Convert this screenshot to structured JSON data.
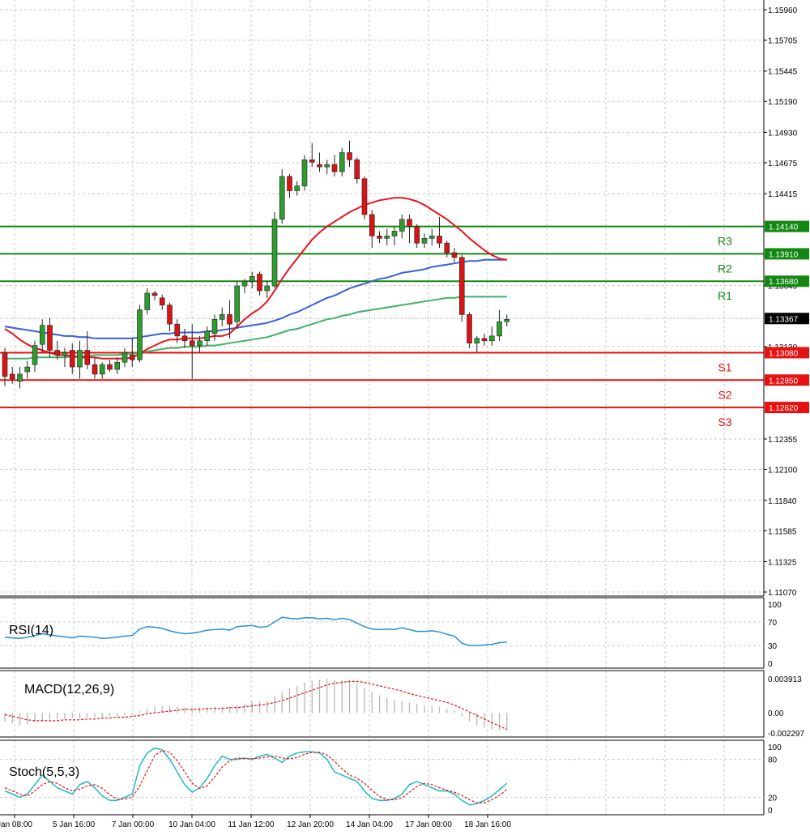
{
  "chart_data": {
    "type": "candlestick",
    "colors": {
      "bull": "#2e9d2e",
      "bear": "#d81414",
      "ma_fast": "#e8141e",
      "ma_mid": "#3a5fd9",
      "ma_slow": "#44b066",
      "resistance": "#118811",
      "support": "#e81010",
      "rsi": "#2a8fd8",
      "stoch_main": "#1fbcc2",
      "stoch_signal": "#e81010",
      "macd_hist": "#b0b0b0",
      "macd_signal": "#e81010",
      "grid": "#c8c8c8",
      "current_tag": "#000000"
    },
    "price_axis": {
      "ticks": [
        "1.15960",
        "1.15705",
        "1.15445",
        "1.15190",
        "1.14930",
        "1.14675",
        "1.14415",
        "1.13645",
        "1.13130",
        "1.12355",
        "1.12100",
        "1.11840",
        "1.11585",
        "1.11325",
        "1.11070"
      ],
      "ylim": [
        1.1107,
        1.1596
      ]
    },
    "current_price": "1.13367",
    "levels": [
      {
        "name": "R3",
        "price": "1.14140",
        "kind": "resistance"
      },
      {
        "name": "R2",
        "price": "1.13910",
        "kind": "resistance"
      },
      {
        "name": "R1",
        "price": "1.13680",
        "kind": "resistance"
      },
      {
        "name": "S1",
        "price": "1.13080",
        "kind": "support"
      },
      {
        "name": "S2",
        "price": "1.12850",
        "kind": "support"
      },
      {
        "name": "S3",
        "price": "1.12620",
        "kind": "support"
      }
    ],
    "x_labels": [
      "Jan 08:00",
      "5 Jan 16:00",
      "7 Jan 00:00",
      "10 Jan 04:00",
      "11 Jan 12:00",
      "12 Jan 20:00",
      "14 Jan 04:00",
      "17 Jan 08:00",
      "18 Jan 16:00"
    ],
    "candles": [
      [
        1.1308,
        1.1312,
        1.128,
        1.1288
      ],
      [
        1.129,
        1.1296,
        1.1282,
        1.1286
      ],
      [
        1.1284,
        1.1296,
        1.1278,
        1.129
      ],
      [
        1.1292,
        1.1301,
        1.1286,
        1.1296
      ],
      [
        1.1298,
        1.1318,
        1.1292,
        1.1314
      ],
      [
        1.1315,
        1.1336,
        1.1308,
        1.1331
      ],
      [
        1.1331,
        1.1337,
        1.1304,
        1.131
      ],
      [
        1.131,
        1.1318,
        1.1302,
        1.1306
      ],
      [
        1.1306,
        1.1312,
        1.1296,
        1.1308
      ],
      [
        1.131,
        1.1316,
        1.129,
        1.1296
      ],
      [
        1.1296,
        1.1318,
        1.1286,
        1.131
      ],
      [
        1.131,
        1.1326,
        1.1294,
        1.1298
      ],
      [
        1.1298,
        1.1304,
        1.1286,
        1.129
      ],
      [
        1.129,
        1.13,
        1.1286,
        1.1298
      ],
      [
        1.1298,
        1.1302,
        1.1292,
        1.1294
      ],
      [
        1.1294,
        1.1304,
        1.129,
        1.13
      ],
      [
        1.13,
        1.1312,
        1.1296,
        1.1308
      ],
      [
        1.1306,
        1.132,
        1.1296,
        1.1302
      ],
      [
        1.1302,
        1.1348,
        1.13,
        1.1344
      ],
      [
        1.1344,
        1.1362,
        1.134,
        1.1358
      ],
      [
        1.1358,
        1.136,
        1.1352,
        1.1356
      ],
      [
        1.1354,
        1.1357,
        1.1344,
        1.1348
      ],
      [
        1.1348,
        1.135,
        1.1326,
        1.1332
      ],
      [
        1.1332,
        1.1336,
        1.1316,
        1.1322
      ],
      [
        1.1322,
        1.1328,
        1.1312,
        1.1318
      ],
      [
        1.1318,
        1.1332,
        1.1286,
        1.1314
      ],
      [
        1.1314,
        1.1322,
        1.1308,
        1.1318
      ],
      [
        1.1318,
        1.133,
        1.1314,
        1.1326
      ],
      [
        1.1324,
        1.134,
        1.1318,
        1.1336
      ],
      [
        1.1336,
        1.1346,
        1.133,
        1.134
      ],
      [
        1.134,
        1.1352,
        1.132,
        1.1332
      ],
      [
        1.1334,
        1.1368,
        1.1328,
        1.1364
      ],
      [
        1.1364,
        1.137,
        1.1358,
        1.1368
      ],
      [
        1.1368,
        1.1376,
        1.1362,
        1.1372
      ],
      [
        1.1374,
        1.1376,
        1.1356,
        1.136
      ],
      [
        1.136,
        1.1368,
        1.1354,
        1.1364
      ],
      [
        1.1364,
        1.1426,
        1.1362,
        1.142
      ],
      [
        1.142,
        1.1462,
        1.1416,
        1.1456
      ],
      [
        1.1456,
        1.1458,
        1.1438,
        1.1444
      ],
      [
        1.1444,
        1.1452,
        1.144,
        1.1448
      ],
      [
        1.1448,
        1.1474,
        1.1444,
        1.147
      ],
      [
        1.147,
        1.1484,
        1.1464,
        1.1468
      ],
      [
        1.1466,
        1.1476,
        1.146,
        1.1464
      ],
      [
        1.1464,
        1.147,
        1.1458,
        1.1466
      ],
      [
        1.1466,
        1.1474,
        1.1456,
        1.146
      ],
      [
        1.146,
        1.148,
        1.1456,
        1.1476
      ],
      [
        1.1476,
        1.1486,
        1.1464,
        1.147
      ],
      [
        1.147,
        1.1472,
        1.145,
        1.1454
      ],
      [
        1.1454,
        1.1456,
        1.142,
        1.1424
      ],
      [
        1.1424,
        1.1428,
        1.1396,
        1.1406
      ],
      [
        1.1406,
        1.141,
        1.14,
        1.1404
      ],
      [
        1.1404,
        1.1412,
        1.1398,
        1.1406
      ],
      [
        1.1406,
        1.1414,
        1.1398,
        1.141
      ],
      [
        1.141,
        1.1424,
        1.1404,
        1.142
      ],
      [
        1.142,
        1.1424,
        1.14,
        1.1414
      ],
      [
        1.1414,
        1.1416,
        1.1396,
        1.14
      ],
      [
        1.14,
        1.1408,
        1.1396,
        1.1404
      ],
      [
        1.1404,
        1.1412,
        1.1398,
        1.1406
      ],
      [
        1.1406,
        1.1422,
        1.1396,
        1.14
      ],
      [
        1.14,
        1.1402,
        1.1388,
        1.1392
      ],
      [
        1.1392,
        1.1396,
        1.1384,
        1.1388
      ],
      [
        1.1388,
        1.139,
        1.1334,
        1.134
      ],
      [
        1.134,
        1.1342,
        1.1312,
        1.1316
      ],
      [
        1.1316,
        1.1322,
        1.1308,
        1.132
      ],
      [
        1.132,
        1.1324,
        1.1314,
        1.1318
      ],
      [
        1.1318,
        1.133,
        1.1314,
        1.1322
      ],
      [
        1.1322,
        1.1344,
        1.1318,
        1.1334
      ],
      [
        1.1334,
        1.134,
        1.133,
        1.1336
      ]
    ],
    "ma_fast": [
      1.1328,
      1.1324,
      1.1319,
      1.1315,
      1.1312,
      1.131,
      1.1308,
      1.1306,
      1.1306,
      1.1305,
      1.1304,
      1.1304,
      1.1304,
      1.1303,
      1.1303,
      1.1303,
      1.1303,
      1.1304,
      1.1307,
      1.1311,
      1.1314,
      1.1317,
      1.1319,
      1.1319,
      1.132,
      1.132,
      1.132,
      1.1321,
      1.1322,
      1.1322,
      1.1324,
      1.133,
      1.1336,
      1.1341,
      1.1345,
      1.1351,
      1.136,
      1.137,
      1.1379,
      1.1387,
      1.1395,
      1.1403,
      1.1409,
      1.1414,
      1.1418,
      1.1422,
      1.1426,
      1.1429,
      1.1432,
      1.1434,
      1.1436,
      1.1437,
      1.1438,
      1.1438,
      1.1437,
      1.1435,
      1.1432,
      1.1428,
      1.1424,
      1.142,
      1.1415,
      1.141,
      1.1404,
      1.1399,
      1.1394,
      1.139,
      1.1387,
      1.1386
    ],
    "ma_mid": [
      1.133,
      1.1329,
      1.1328,
      1.1327,
      1.1326,
      1.1325,
      1.1324,
      1.1323,
      1.1322,
      1.1322,
      1.1321,
      1.1321,
      1.132,
      1.132,
      1.132,
      1.132,
      1.132,
      1.132,
      1.1321,
      1.1322,
      1.1323,
      1.1324,
      1.1324,
      1.1325,
      1.1325,
      1.1325,
      1.1325,
      1.1326,
      1.1326,
      1.1327,
      1.1328,
      1.1329,
      1.133,
      1.1331,
      1.1332,
      1.1333,
      1.1335,
      1.1337,
      1.134,
      1.1342,
      1.1345,
      1.1348,
      1.1351,
      1.1354,
      1.1356,
      1.1359,
      1.1362,
      1.1364,
      1.1366,
      1.1368,
      1.137,
      1.1371,
      1.1373,
      1.1375,
      1.1376,
      1.1377,
      1.1378,
      1.138,
      1.1381,
      1.1382,
      1.1383,
      1.1384,
      1.1385,
      1.1385,
      1.1386,
      1.1386,
      1.1386,
      1.1386
    ],
    "ma_slow": [
      1.1303,
      1.1303,
      1.1303,
      1.1303,
      1.1304,
      1.1304,
      1.1304,
      1.1304,
      1.1304,
      1.1305,
      1.1305,
      1.1305,
      1.1306,
      1.1306,
      1.1306,
      1.1306,
      1.1307,
      1.1307,
      1.1308,
      1.1309,
      1.131,
      1.1311,
      1.1312,
      1.1312,
      1.1313,
      1.1313,
      1.1313,
      1.1314,
      1.1314,
      1.1315,
      1.1316,
      1.1317,
      1.1318,
      1.1319,
      1.132,
      1.1321,
      1.1323,
      1.1325,
      1.1327,
      1.1328,
      1.133,
      1.1332,
      1.1334,
      1.1336,
      1.1337,
      1.1339,
      1.134,
      1.1342,
      1.1343,
      1.1344,
      1.1345,
      1.1346,
      1.1347,
      1.1348,
      1.1349,
      1.135,
      1.1351,
      1.1352,
      1.1353,
      1.1354,
      1.1354,
      1.1355,
      1.1355,
      1.1355,
      1.1355,
      1.1355,
      1.1355,
      1.1355
    ],
    "rsi": {
      "title": "RSI(14)",
      "ticks": [
        "100",
        "70",
        "30",
        "0"
      ],
      "values": [
        44,
        43,
        42,
        44,
        47,
        50,
        48,
        46,
        45,
        43,
        46,
        45,
        44,
        42,
        43,
        44,
        46,
        47,
        58,
        62,
        61,
        59,
        55,
        52,
        50,
        51,
        53,
        56,
        57,
        58,
        56,
        62,
        63,
        64,
        61,
        62,
        70,
        78,
        76,
        75,
        77,
        77,
        75,
        76,
        74,
        76,
        74,
        68,
        62,
        58,
        57,
        58,
        57,
        60,
        57,
        54,
        54,
        55,
        53,
        49,
        46,
        34,
        30,
        30,
        31,
        32,
        35,
        36
      ]
    },
    "macd": {
      "title": "MACD(12,26,9)",
      "ticks": [
        "0.003913",
        "0.00",
        "-0.002297"
      ],
      "hist": [
        -0.001,
        -0.0012,
        -0.0014,
        -0.0013,
        -0.0011,
        -0.0009,
        -0.0008,
        -0.0007,
        -0.0007,
        -0.0006,
        -0.0006,
        -0.0005,
        -0.0005,
        -0.0005,
        -0.0004,
        -0.0004,
        -0.0003,
        -0.0002,
        0.0002,
        0.0005,
        0.0007,
        0.0008,
        0.0008,
        0.0007,
        0.0006,
        0.0006,
        0.0006,
        0.0006,
        0.0007,
        0.0007,
        0.0007,
        0.0009,
        0.0011,
        0.0013,
        0.0013,
        0.0014,
        0.0019,
        0.0024,
        0.0028,
        0.0031,
        0.0035,
        0.0037,
        0.0038,
        0.0039,
        0.0038,
        0.0038,
        0.0037,
        0.0034,
        0.0029,
        0.0024,
        0.002,
        0.0017,
        0.0015,
        0.0013,
        0.0012,
        0.001,
        0.0009,
        0.0008,
        0.0007,
        0.0005,
        0.0003,
        -0.0004,
        -0.001,
        -0.0014,
        -0.0017,
        -0.0019,
        -0.002,
        -0.002
      ],
      "signal": [
        -0.0002,
        -0.0004,
        -0.0006,
        -0.0008,
        -0.0009,
        -0.0009,
        -0.0009,
        -0.0009,
        -0.0008,
        -0.0008,
        -0.0008,
        -0.0007,
        -0.0007,
        -0.0006,
        -0.0006,
        -0.0005,
        -0.0005,
        -0.0004,
        -0.0003,
        -0.0001,
        0.0,
        0.0001,
        0.0002,
        0.0003,
        0.0004,
        0.0004,
        0.0004,
        0.0005,
        0.0005,
        0.0005,
        0.0006,
        0.0006,
        0.0007,
        0.0008,
        0.0009,
        0.001,
        0.0012,
        0.0014,
        0.0017,
        0.002,
        0.0023,
        0.0026,
        0.0029,
        0.0032,
        0.0034,
        0.0035,
        0.0036,
        0.0036,
        0.0035,
        0.0033,
        0.0031,
        0.0029,
        0.0027,
        0.0025,
        0.0022,
        0.002,
        0.0018,
        0.0016,
        0.0014,
        0.0012,
        0.0009,
        0.0005,
        0.0001,
        -0.0003,
        -0.0007,
        -0.0011,
        -0.0015,
        -0.0019
      ]
    },
    "stoch": {
      "title": "Stoch(5,5,3)",
      "ticks": [
        "100",
        "80",
        "20",
        "0"
      ],
      "main": [
        30,
        25,
        20,
        25,
        40,
        55,
        45,
        35,
        30,
        25,
        40,
        45,
        35,
        22,
        15,
        15,
        20,
        25,
        70,
        90,
        98,
        95,
        80,
        60,
        40,
        28,
        35,
        50,
        70,
        85,
        80,
        80,
        82,
        80,
        85,
        88,
        82,
        75,
        85,
        90,
        92,
        92,
        90,
        80,
        60,
        55,
        50,
        45,
        30,
        18,
        15,
        15,
        18,
        25,
        40,
        45,
        40,
        35,
        30,
        30,
        25,
        15,
        8,
        10,
        15,
        22,
        32,
        42
      ],
      "signal": [
        35,
        30,
        25,
        22,
        30,
        40,
        45,
        42,
        35,
        30,
        33,
        38,
        40,
        34,
        24,
        17,
        17,
        20,
        38,
        62,
        86,
        94,
        91,
        78,
        60,
        42,
        34,
        38,
        52,
        68,
        78,
        82,
        81,
        81,
        82,
        84,
        85,
        82,
        81,
        83,
        88,
        91,
        91,
        87,
        77,
        65,
        55,
        50,
        42,
        31,
        21,
        16,
        16,
        19,
        28,
        37,
        42,
        40,
        35,
        31,
        28,
        23,
        16,
        11,
        11,
        16,
        23,
        32
      ]
    }
  }
}
